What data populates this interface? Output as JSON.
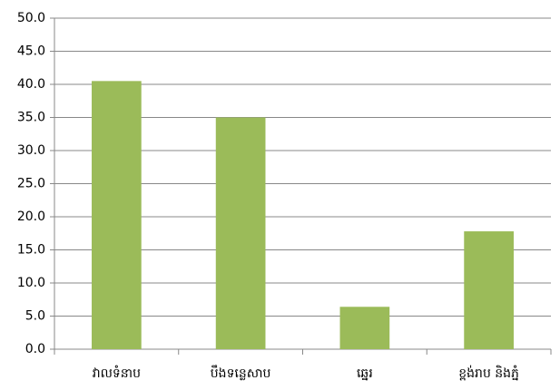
{
  "chart_data": {
    "type": "bar",
    "categories": [
      "វាលទំនាប",
      "បឹងទន្លេសាប",
      "ឆ្នេរ",
      "ខ្ពង់រាប និងភ្នំ"
    ],
    "values": [
      40.5,
      35.0,
      6.4,
      17.8
    ],
    "color": "#9bbb59",
    "ylim": [
      0,
      50
    ],
    "yticks": [
      {
        "value": 0,
        "label": "0.0"
      },
      {
        "value": 5,
        "label": "5.0"
      },
      {
        "value": 10,
        "label": "10.0"
      },
      {
        "value": 15,
        "label": "15.0"
      },
      {
        "value": 20,
        "label": "20.0"
      },
      {
        "value": 25,
        "label": "25.0"
      },
      {
        "value": 30,
        "label": "30.0"
      },
      {
        "value": 35,
        "label": "35.0"
      },
      {
        "value": 40,
        "label": "40.0"
      },
      {
        "value": 45,
        "label": "45.0"
      },
      {
        "value": 50,
        "label": "50.0"
      }
    ],
    "grid": true
  }
}
